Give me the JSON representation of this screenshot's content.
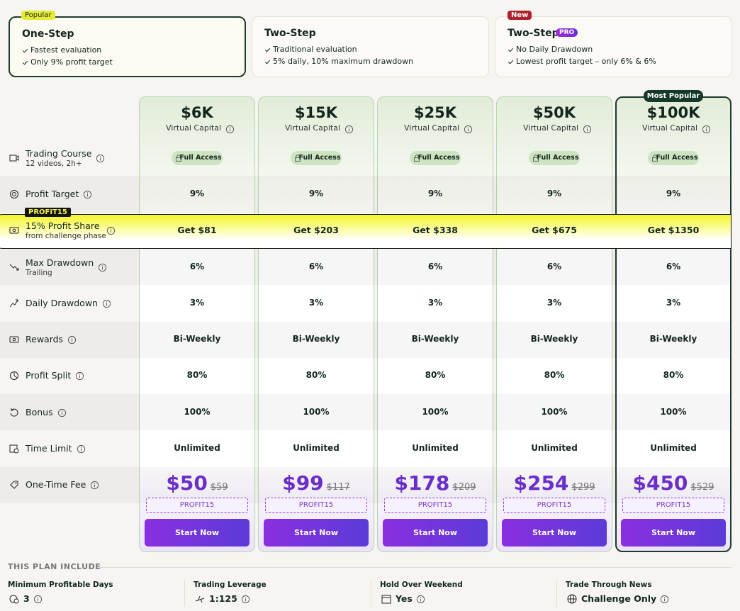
{
  "tabs": [
    {
      "badge": "Popular",
      "title": "One-Step",
      "features": [
        "Fastest evaluation",
        "Only 9% profit target"
      ]
    },
    {
      "title": "Two-Step",
      "features": [
        "Traditional evaluation",
        "5% daily, 10% maximum drawdown"
      ]
    },
    {
      "badge": "New",
      "title": "Two-Step",
      "tag": "PRO",
      "features": [
        "No Daily Drawdown",
        "Lowest profit target – only 6% & 6%"
      ]
    }
  ],
  "most_popular": "Most Popular",
  "plans": [
    {
      "size": "$6K",
      "subtitle": "Virtual Capital",
      "price": "$50",
      "old_price": "$59",
      "code": "PROFIT15",
      "button": "Start Now"
    },
    {
      "size": "$15K",
      "subtitle": "Virtual Capital",
      "price": "$99",
      "old_price": "$117",
      "code": "PROFIT15",
      "button": "Start Now"
    },
    {
      "size": "$25K",
      "subtitle": "Virtual Capital",
      "price": "$178",
      "old_price": "$209",
      "code": "PROFIT15",
      "button": "Start Now"
    },
    {
      "size": "$50K",
      "subtitle": "Virtual Capital",
      "price": "$254",
      "old_price": "$299",
      "code": "PROFIT15",
      "button": "Start Now"
    },
    {
      "size": "$100K",
      "subtitle": "Virtual Capital",
      "price": "$450",
      "old_price": "$529",
      "code": "PROFIT15",
      "button": "Start Now"
    }
  ],
  "rows": [
    {
      "label": "Trading Course",
      "sub": "12 videos, 2h+",
      "values": [
        "Full Access",
        "Full Access",
        "Full Access",
        "Full Access",
        "Full Access"
      ]
    },
    {
      "label": "Profit Target",
      "values": [
        "9%",
        "9%",
        "9%",
        "9%",
        "9%"
      ]
    },
    {
      "badge": "PROFIT15",
      "label": "15% Profit Share",
      "sub": "from challenge phase",
      "values": [
        "Get $81",
        "Get $203",
        "Get $338",
        "Get $675",
        "Get $1350"
      ]
    },
    {
      "label": "Max Drawdown",
      "sub": "Trailing",
      "values": [
        "6%",
        "6%",
        "6%",
        "6%",
        "6%"
      ]
    },
    {
      "label": "Daily Drawdown",
      "values": [
        "3%",
        "3%",
        "3%",
        "3%",
        "3%"
      ]
    },
    {
      "label": "Rewards",
      "values": [
        "Bi-Weekly",
        "Bi-Weekly",
        "Bi-Weekly",
        "Bi-Weekly",
        "Bi-Weekly"
      ]
    },
    {
      "label": "Profit Split",
      "values": [
        "80%",
        "80%",
        "80%",
        "80%",
        "80%"
      ]
    },
    {
      "label": "Bonus",
      "values": [
        "100%",
        "100%",
        "100%",
        "100%",
        "100%"
      ]
    },
    {
      "label": "Time Limit",
      "values": [
        "Unlimited",
        "Unlimited",
        "Unlimited",
        "Unlimited",
        "Unlimited"
      ]
    },
    {
      "label": "One-Time Fee"
    }
  ],
  "includes": {
    "title": "THIS PLAN INCLUDE",
    "items": [
      {
        "label": "Minimum Profitable Days",
        "value": "3"
      },
      {
        "label": "Trading Leverage",
        "value": "1:125"
      },
      {
        "label": "Hold Over Weekend",
        "value": "Yes"
      },
      {
        "label": "Trade Through News",
        "value": "Challenge Only"
      }
    ]
  }
}
